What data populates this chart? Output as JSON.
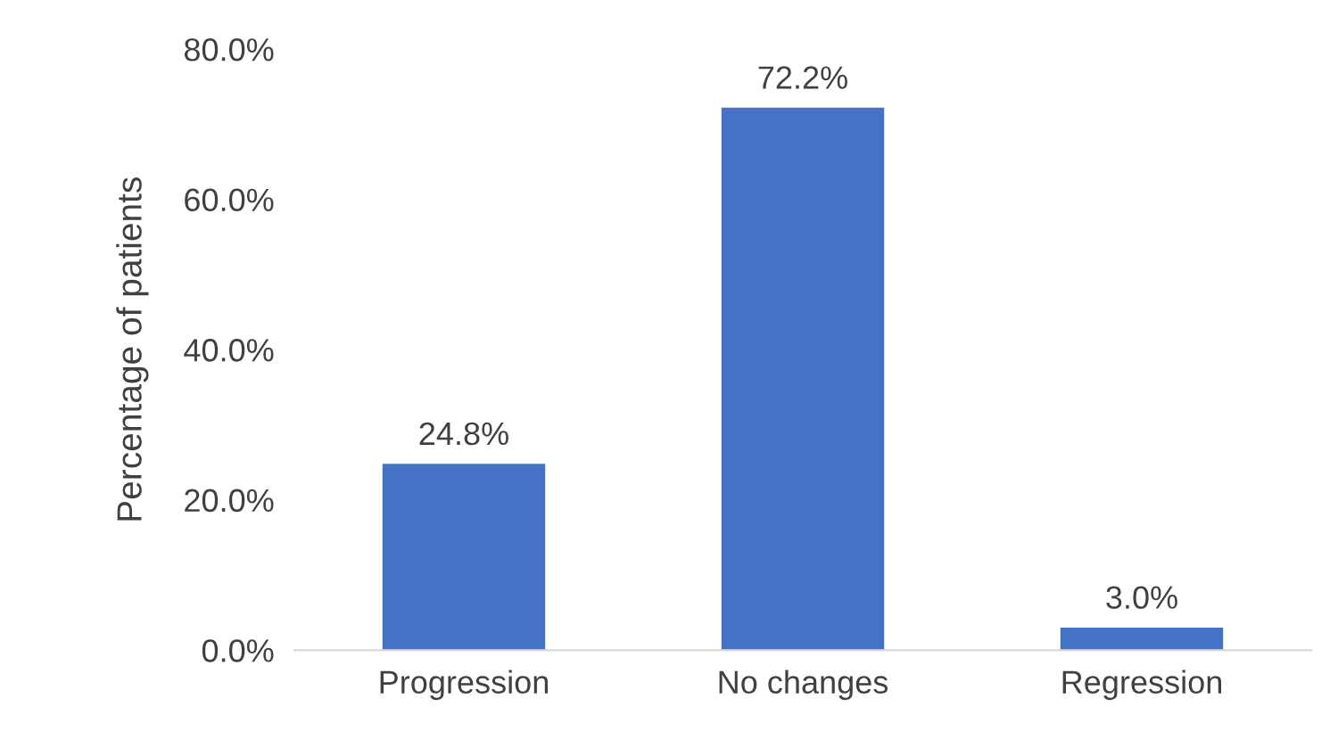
{
  "chart_data": {
    "type": "bar",
    "ylabel": "Percentage of patients",
    "categories": [
      "Progression",
      "No changes",
      "Regression"
    ],
    "values": [
      24.8,
      72.2,
      3.0
    ],
    "value_labels": [
      "24.8%",
      "72.2%",
      "3.0%"
    ],
    "color": "#4472c4",
    "ylim": [
      0,
      80
    ],
    "yticks": [
      {
        "value": 0,
        "label": "0.0%"
      },
      {
        "value": 20,
        "label": "20.0%"
      },
      {
        "value": 40,
        "label": "40.0%"
      },
      {
        "value": 60,
        "label": "60.0%"
      },
      {
        "value": 80,
        "label": "80.0%"
      }
    ],
    "grid": false,
    "legend": false
  }
}
